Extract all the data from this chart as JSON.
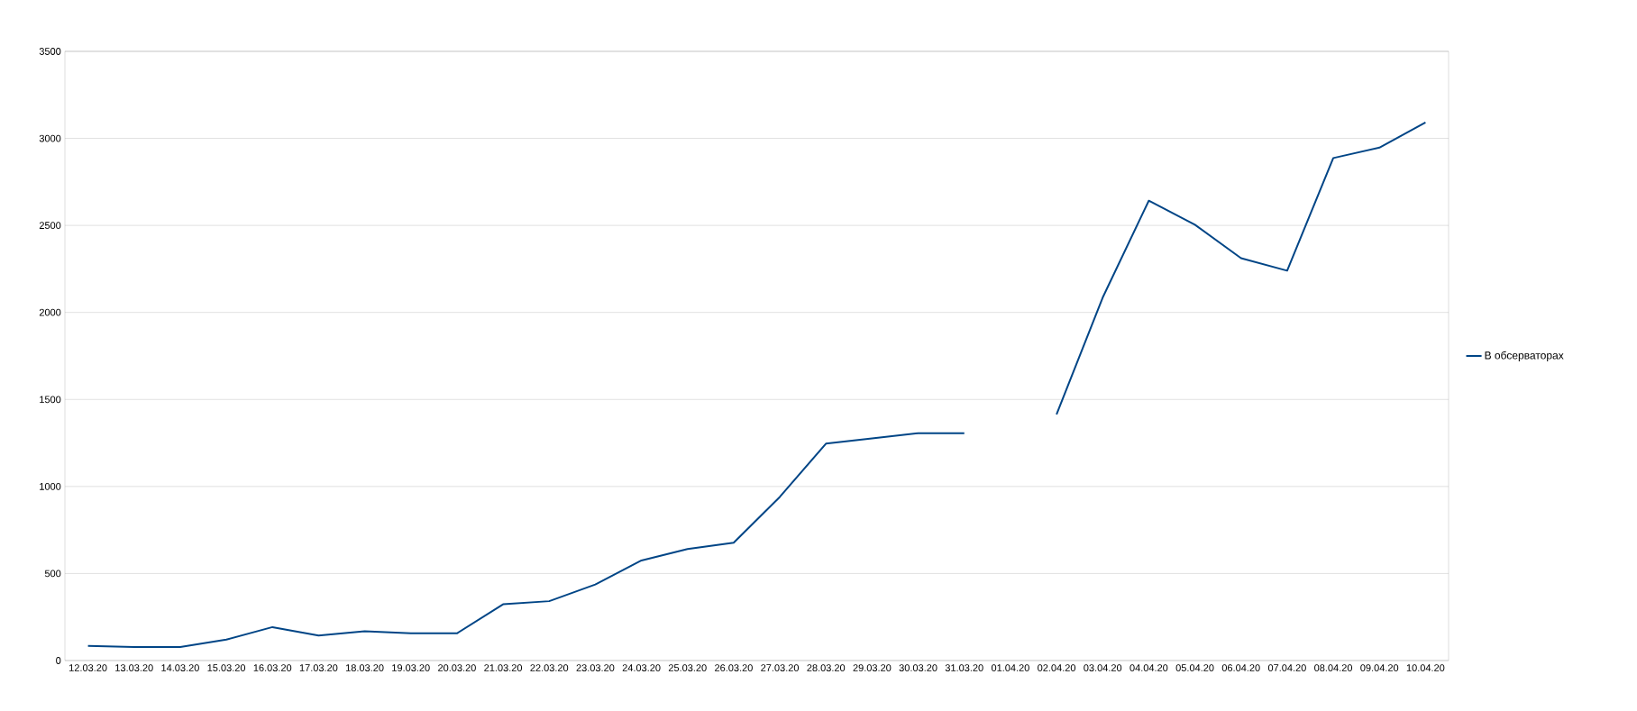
{
  "chart_data": {
    "type": "line",
    "categories": [
      "12.03.20",
      "13.03.20",
      "14.03.20",
      "15.03.20",
      "16.03.20",
      "17.03.20",
      "18.03.20",
      "19.03.20",
      "20.03.20",
      "21.03.20",
      "22.03.20",
      "23.03.20",
      "24.03.20",
      "25.03.20",
      "26.03.20",
      "27.03.20",
      "28.03.20",
      "29.03.20",
      "30.03.20",
      "31.03.20",
      "01.04.20",
      "02.04.20",
      "03.04.20",
      "04.04.20",
      "05.04.20",
      "06.04.20",
      "07.04.20",
      "08.04.20",
      "09.04.20",
      "10.04.20"
    ],
    "series": [
      {
        "name": "В обсерваторах",
        "color": "#004586",
        "values": [
          84,
          78,
          78,
          120,
          192,
          144,
          168,
          156,
          156,
          323,
          341,
          437,
          575,
          641,
          677,
          940,
          1246,
          1276,
          1306,
          1306,
          null,
          1414,
          2085,
          2642,
          2504,
          2312,
          2240,
          2887,
          2947,
          3091
        ]
      }
    ],
    "ylim": [
      0,
      3500
    ],
    "yticks": [
      0,
      500,
      1000,
      1500,
      2000,
      2500,
      3000,
      3500
    ],
    "grid": "y",
    "legend": "right"
  }
}
